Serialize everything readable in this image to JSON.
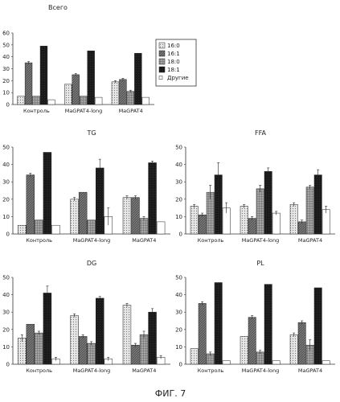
{
  "caption": "ФИГ. 7",
  "series_colors": {
    "16:0": "#d9d9d9",
    "16:1": "#5a5a5a",
    "18:0": "#a0a0a0",
    "18:1": "#1a1a1a",
    "Другие": "#ffffff"
  },
  "chart_data": [
    {
      "type": "bar",
      "title": "Всего",
      "categories": [
        "Контроль",
        "MaGPAT4-long",
        "MaGPAT4"
      ],
      "ylim": [
        0,
        60
      ],
      "yticks": [
        0,
        10,
        20,
        30,
        40,
        50,
        60
      ],
      "legend": "right",
      "series": [
        {
          "name": "16:0",
          "values": [
            7,
            17,
            19
          ]
        },
        {
          "name": "16:1",
          "values": [
            35,
            25,
            21
          ]
        },
        {
          "name": "18:0",
          "values": [
            7,
            7,
            11
          ]
        },
        {
          "name": "18:1",
          "values": [
            49,
            45,
            43
          ]
        },
        {
          "name": "Другие",
          "values": [
            4,
            6,
            6
          ]
        }
      ],
      "errors": [
        [
          0,
          1,
          0,
          0,
          0
        ],
        [
          0,
          1,
          0,
          0,
          0
        ],
        [
          1,
          1,
          1,
          0,
          0
        ]
      ]
    },
    {
      "type": "bar",
      "title": "TG",
      "categories": [
        "Контроль",
        "MaGPAT4-long",
        "MaGPAT4"
      ],
      "ylim": [
        0,
        50
      ],
      "yticks": [
        0,
        10,
        20,
        30,
        40,
        50
      ],
      "series": [
        {
          "name": "16:0",
          "values": [
            5,
            20,
            21
          ]
        },
        {
          "name": "16:1",
          "values": [
            34,
            24,
            21
          ]
        },
        {
          "name": "18:0",
          "values": [
            8,
            8,
            9
          ]
        },
        {
          "name": "18:1",
          "values": [
            47,
            38,
            41
          ]
        },
        {
          "name": "Другие",
          "values": [
            5,
            10,
            7
          ]
        }
      ],
      "errors": [
        [
          0,
          1,
          0,
          0,
          0
        ],
        [
          1,
          0,
          0,
          5,
          5
        ],
        [
          1,
          1,
          1,
          1,
          0
        ]
      ]
    },
    {
      "type": "bar",
      "title": "FFA",
      "categories": [
        "Контроль",
        "MaGPAT4-long",
        "MaGPAT4"
      ],
      "ylim": [
        0,
        50
      ],
      "yticks": [
        0,
        10,
        20,
        30,
        40,
        50
      ],
      "series": [
        {
          "name": "16:0",
          "values": [
            16,
            16,
            17
          ]
        },
        {
          "name": "16:1",
          "values": [
            11,
            9,
            7
          ]
        },
        {
          "name": "18:0",
          "values": [
            24,
            26,
            27
          ]
        },
        {
          "name": "18:1",
          "values": [
            34,
            36,
            34
          ]
        },
        {
          "name": "Другие",
          "values": [
            15,
            12,
            14
          ]
        }
      ],
      "errors": [
        [
          1,
          1,
          4,
          7,
          3
        ],
        [
          1,
          1,
          2,
          2,
          1
        ],
        [
          1,
          1,
          1,
          3,
          2
        ]
      ]
    },
    {
      "type": "bar",
      "title": "DG",
      "categories": [
        "Контроль",
        "MaGPAT4-long",
        "MaGPAT4"
      ],
      "ylim": [
        0,
        50
      ],
      "yticks": [
        0,
        10,
        20,
        30,
        40,
        50
      ],
      "series": [
        {
          "name": "16:0",
          "values": [
            15,
            28,
            34
          ]
        },
        {
          "name": "16:1",
          "values": [
            23,
            16,
            11
          ]
        },
        {
          "name": "18:0",
          "values": [
            18,
            12,
            17
          ]
        },
        {
          "name": "18:1",
          "values": [
            41,
            38,
            30
          ]
        },
        {
          "name": "Другие",
          "values": [
            3,
            3,
            4
          ]
        }
      ],
      "errors": [
        [
          2,
          0,
          1,
          4,
          1
        ],
        [
          1,
          1,
          1,
          1,
          1
        ],
        [
          1,
          1,
          2,
          2,
          1
        ]
      ]
    },
    {
      "type": "bar",
      "title": "PL",
      "categories": [
        "Контроль",
        "MaGPAT4-long",
        "MaGPAT4"
      ],
      "ylim": [
        0,
        50
      ],
      "yticks": [
        0,
        10,
        20,
        30,
        40,
        50
      ],
      "series": [
        {
          "name": "16:0",
          "values": [
            9,
            16,
            17
          ]
        },
        {
          "name": "16:1",
          "values": [
            35,
            27,
            24
          ]
        },
        {
          "name": "18:0",
          "values": [
            6,
            7,
            11
          ]
        },
        {
          "name": "18:1",
          "values": [
            47,
            46,
            44
          ]
        },
        {
          "name": "Другие",
          "values": [
            2,
            2,
            2
          ]
        }
      ],
      "errors": [
        [
          0,
          1,
          1,
          0,
          0
        ],
        [
          0,
          1,
          1,
          0,
          0
        ],
        [
          1,
          1,
          3,
          0,
          0
        ]
      ]
    }
  ]
}
